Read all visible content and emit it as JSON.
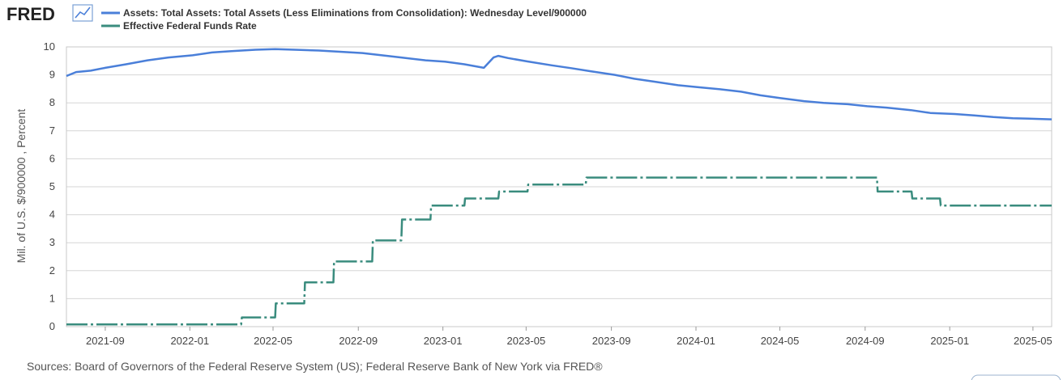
{
  "header": {
    "logo_text": "FRED",
    "logo_icon": "line-chart-icon"
  },
  "chart_data": {
    "type": "line",
    "ylabel": "Mil. of U.S. $/900000 , Percent",
    "ylim": [
      0,
      10
    ],
    "y_ticks": [
      "0",
      "1",
      "2",
      "3",
      "4",
      "5",
      "6",
      "7",
      "8",
      "9",
      "10"
    ],
    "x_ticks": [
      "2021-09",
      "2022-01",
      "2022-05",
      "2022-09",
      "2023-01",
      "2023-05",
      "2023-09",
      "2024-01",
      "2024-05",
      "2024-09",
      "2025-01",
      "2025-05"
    ],
    "xlim": [
      "2021-07-07",
      "2025-05-28"
    ],
    "grid": true,
    "legend_position": "top-left",
    "series": [
      {
        "name": "Assets: Total Assets: Total Assets (Less Eliminations from Consolidation): Wednesday Level/900000",
        "color": "#4a7fd9",
        "style": "solid",
        "points": [
          [
            "2021-07-07",
            8.96
          ],
          [
            "2021-07-21",
            9.1
          ],
          [
            "2021-08-11",
            9.15
          ],
          [
            "2021-09-01",
            9.25
          ],
          [
            "2021-10-01",
            9.38
          ],
          [
            "2021-11-01",
            9.52
          ],
          [
            "2021-12-01",
            9.62
          ],
          [
            "2022-01-05",
            9.7
          ],
          [
            "2022-02-02",
            9.8
          ],
          [
            "2022-03-02",
            9.85
          ],
          [
            "2022-04-06",
            9.9
          ],
          [
            "2022-05-04",
            9.92
          ],
          [
            "2022-06-01",
            9.9
          ],
          [
            "2022-07-06",
            9.87
          ],
          [
            "2022-08-03",
            9.83
          ],
          [
            "2022-09-07",
            9.78
          ],
          [
            "2022-10-05",
            9.7
          ],
          [
            "2022-11-02",
            9.62
          ],
          [
            "2022-12-07",
            9.52
          ],
          [
            "2023-01-04",
            9.47
          ],
          [
            "2023-02-01",
            9.38
          ],
          [
            "2023-03-01",
            9.25
          ],
          [
            "2023-03-15",
            9.62
          ],
          [
            "2023-03-22",
            9.68
          ],
          [
            "2023-04-05",
            9.6
          ],
          [
            "2023-05-03",
            9.48
          ],
          [
            "2023-06-07",
            9.34
          ],
          [
            "2023-07-05",
            9.24
          ],
          [
            "2023-08-02",
            9.13
          ],
          [
            "2023-09-06",
            9.0
          ],
          [
            "2023-10-04",
            8.86
          ],
          [
            "2023-11-01",
            8.76
          ],
          [
            "2023-12-06",
            8.63
          ],
          [
            "2024-01-03",
            8.56
          ],
          [
            "2024-02-07",
            8.48
          ],
          [
            "2024-03-06",
            8.4
          ],
          [
            "2024-04-03",
            8.27
          ],
          [
            "2024-05-01",
            8.17
          ],
          [
            "2024-06-05",
            8.06
          ],
          [
            "2024-07-03",
            8.0
          ],
          [
            "2024-08-07",
            7.95
          ],
          [
            "2024-09-04",
            7.88
          ],
          [
            "2024-10-02",
            7.83
          ],
          [
            "2024-11-06",
            7.74
          ],
          [
            "2024-12-04",
            7.64
          ],
          [
            "2025-01-08",
            7.6
          ],
          [
            "2025-02-05",
            7.55
          ],
          [
            "2025-03-05",
            7.49
          ],
          [
            "2025-04-02",
            7.45
          ],
          [
            "2025-05-28",
            7.41
          ]
        ]
      },
      {
        "name": "Effective Federal Funds Rate",
        "color": "#3a8c7e",
        "style": "dash-dot",
        "points": [
          [
            "2021-07-07",
            0.08
          ],
          [
            "2022-03-16",
            0.08
          ],
          [
            "2022-03-17",
            0.33
          ],
          [
            "2022-05-04",
            0.33
          ],
          [
            "2022-05-05",
            0.83
          ],
          [
            "2022-06-15",
            0.83
          ],
          [
            "2022-06-16",
            1.58
          ],
          [
            "2022-07-27",
            1.58
          ],
          [
            "2022-07-28",
            2.33
          ],
          [
            "2022-09-21",
            2.33
          ],
          [
            "2022-09-22",
            3.08
          ],
          [
            "2022-11-02",
            3.08
          ],
          [
            "2022-11-03",
            3.83
          ],
          [
            "2022-12-14",
            3.83
          ],
          [
            "2022-12-15",
            4.33
          ],
          [
            "2023-02-01",
            4.33
          ],
          [
            "2023-02-02",
            4.58
          ],
          [
            "2023-03-22",
            4.58
          ],
          [
            "2023-03-23",
            4.83
          ],
          [
            "2023-05-03",
            4.83
          ],
          [
            "2023-05-04",
            5.08
          ],
          [
            "2023-07-26",
            5.08
          ],
          [
            "2023-07-27",
            5.33
          ],
          [
            "2024-09-18",
            5.33
          ],
          [
            "2024-09-19",
            4.83
          ],
          [
            "2024-11-07",
            4.83
          ],
          [
            "2024-11-08",
            4.58
          ],
          [
            "2024-12-18",
            4.58
          ],
          [
            "2024-12-19",
            4.33
          ],
          [
            "2025-05-28",
            4.33
          ]
        ]
      }
    ]
  },
  "source_note": "Sources: Board of Governors of the Federal Reserve System (US); Federal Reserve Bank of New York via FRED®"
}
